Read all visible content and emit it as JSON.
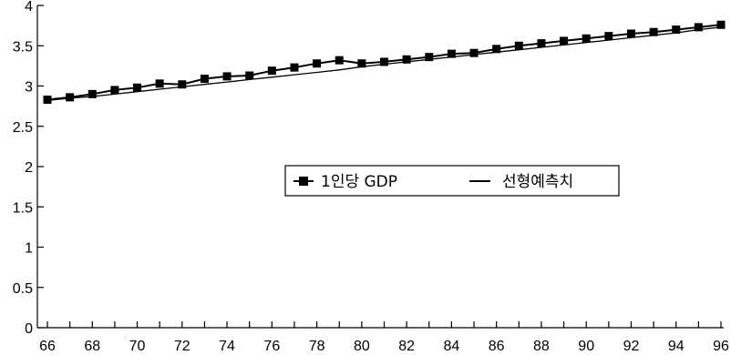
{
  "chart_data": {
    "type": "line",
    "x": [
      66,
      67,
      68,
      69,
      70,
      71,
      72,
      73,
      74,
      75,
      76,
      77,
      78,
      79,
      80,
      81,
      82,
      83,
      84,
      85,
      86,
      87,
      88,
      89,
      90,
      91,
      92,
      93,
      94,
      95,
      96
    ],
    "x_tick_labels": [
      "66",
      "68",
      "70",
      "72",
      "74",
      "76",
      "78",
      "80",
      "82",
      "84",
      "86",
      "88",
      "90",
      "92",
      "94",
      "96"
    ],
    "y_tick_labels": [
      "0",
      "0.5",
      "1",
      "1.5",
      "2",
      "2.5",
      "3",
      "3.5",
      "4"
    ],
    "ylim": [
      0,
      4
    ],
    "xlim": [
      66,
      96
    ],
    "series": [
      {
        "name": "1인당 GDP",
        "style": "line-square-marker",
        "color": "#000000",
        "values": [
          2.83,
          2.86,
          2.9,
          2.95,
          2.98,
          3.03,
          3.02,
          3.09,
          3.12,
          3.13,
          3.19,
          3.23,
          3.28,
          3.32,
          3.28,
          3.3,
          3.33,
          3.36,
          3.4,
          3.41,
          3.46,
          3.5,
          3.53,
          3.56,
          3.59,
          3.62,
          3.65,
          3.67,
          3.7,
          3.73,
          3.76
        ]
      },
      {
        "name": "선형예측치",
        "style": "line",
        "color": "#000000",
        "values": [
          2.82,
          2.85,
          2.87,
          2.9,
          2.93,
          2.96,
          2.99,
          3.02,
          3.05,
          3.08,
          3.11,
          3.14,
          3.17,
          3.2,
          3.24,
          3.27,
          3.3,
          3.33,
          3.36,
          3.39,
          3.42,
          3.45,
          3.48,
          3.51,
          3.54,
          3.57,
          3.6,
          3.63,
          3.66,
          3.7,
          3.73
        ]
      }
    ],
    "legend": {
      "position": "center-right",
      "entries": [
        "1인당 GDP",
        "선형예측치"
      ]
    },
    "grid": false,
    "title": "",
    "xlabel": "",
    "ylabel": ""
  }
}
